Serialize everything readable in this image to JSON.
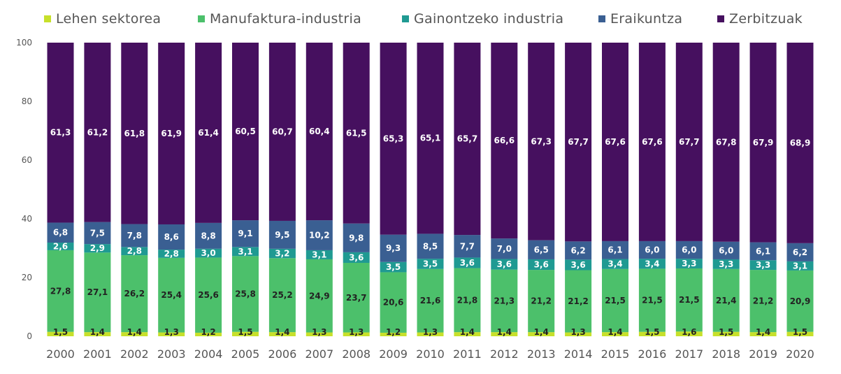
{
  "chart_data": {
    "type": "bar",
    "stacked": true,
    "ylim": [
      0,
      100
    ],
    "yticks": [
      0,
      20,
      40,
      60,
      80,
      100
    ],
    "grid": false,
    "legend_position": "top",
    "categories": [
      "2000",
      "2001",
      "2002",
      "2003",
      "2004",
      "2005",
      "2006",
      "2007",
      "2008",
      "2009",
      "2010",
      "2011",
      "2012",
      "2013",
      "2014",
      "2015",
      "2016",
      "2017",
      "2018",
      "2019",
      "2020"
    ],
    "series": [
      {
        "name": "Lehen sektorea",
        "color": "#c7e02a",
        "label_color": "#222222",
        "values": [
          1.5,
          1.4,
          1.4,
          1.3,
          1.2,
          1.5,
          1.4,
          1.3,
          1.3,
          1.2,
          1.3,
          1.4,
          1.4,
          1.4,
          1.3,
          1.4,
          1.5,
          1.6,
          1.5,
          1.4,
          1.5
        ],
        "labels": [
          "1,5",
          "1,4",
          "1,4",
          "1,3",
          "1,2",
          "1,5",
          "1,4",
          "1,3",
          "1,3",
          "1,2",
          "1,3",
          "1,4",
          "1,4",
          "1,4",
          "1,3",
          "1,4",
          "1,5",
          "1,6",
          "1,5",
          "1,4",
          "1,5"
        ]
      },
      {
        "name": "Manufaktura-industria",
        "color": "#4cc06b",
        "label_color": "#222222",
        "values": [
          27.8,
          27.1,
          26.2,
          25.4,
          25.6,
          25.8,
          25.2,
          24.9,
          23.7,
          20.6,
          21.6,
          21.8,
          21.3,
          21.2,
          21.2,
          21.5,
          21.5,
          21.5,
          21.4,
          21.2,
          20.9
        ],
        "labels": [
          "27,8",
          "27,1",
          "26,2",
          "25,4",
          "25,6",
          "25,8",
          "25,2",
          "24,9",
          "23,7",
          "20,6",
          "21,6",
          "21,8",
          "21,3",
          "21,2",
          "21,2",
          "21,5",
          "21,5",
          "21,5",
          "21,4",
          "21,2",
          "20,9"
        ]
      },
      {
        "name": "Gainontzeko industria",
        "color": "#1f9a92",
        "label_color": "#ffffff",
        "values": [
          2.6,
          2.9,
          2.8,
          2.8,
          3.0,
          3.1,
          3.2,
          3.1,
          3.6,
          3.5,
          3.5,
          3.6,
          3.6,
          3.6,
          3.6,
          3.4,
          3.4,
          3.3,
          3.3,
          3.3,
          3.1
        ],
        "labels": [
          "2,6",
          "2,9",
          "2,8",
          "2,8",
          "3,0",
          "3,1",
          "3,2",
          "3,1",
          "3,6",
          "3,5",
          "3,5",
          "3,6",
          "3,6",
          "3,6",
          "3,6",
          "3,4",
          "3,4",
          "3,3",
          "3,3",
          "3,3",
          "3,1"
        ]
      },
      {
        "name": "Eraikuntza",
        "color": "#3a5f92",
        "label_color": "#ffffff",
        "values": [
          6.8,
          7.5,
          7.8,
          8.6,
          8.8,
          9.1,
          9.5,
          10.2,
          9.8,
          9.3,
          8.5,
          7.7,
          7.0,
          6.5,
          6.2,
          6.1,
          6.0,
          6.0,
          6.0,
          6.1,
          6.2
        ],
        "labels": [
          "6,8",
          "7,5",
          "7,8",
          "8,6",
          "8,8",
          "9,1",
          "9,5",
          "10,2",
          "9,8",
          "9,3",
          "8,5",
          "7,7",
          "7,0",
          "6,5",
          "6,2",
          "6,1",
          "6,0",
          "6,0",
          "6,0",
          "6,1",
          "6,2"
        ]
      },
      {
        "name": "Zerbitzuak",
        "color": "#46105f",
        "label_color": "#ffffff",
        "values": [
          61.3,
          61.2,
          61.8,
          61.9,
          61.4,
          60.5,
          60.7,
          60.4,
          61.5,
          65.3,
          65.1,
          65.7,
          66.6,
          67.3,
          67.7,
          67.6,
          67.6,
          67.7,
          67.8,
          67.9,
          68.9
        ],
        "labels": [
          "61,3",
          "61,2",
          "61,8",
          "61,9",
          "61,4",
          "60,5",
          "60,7",
          "60,4",
          "61,5",
          "65,3",
          "65,1",
          "65,7",
          "66,6",
          "67,3",
          "67,7",
          "67,6",
          "67,6",
          "67,7",
          "67,8",
          "67,9",
          "68,9"
        ]
      }
    ]
  }
}
